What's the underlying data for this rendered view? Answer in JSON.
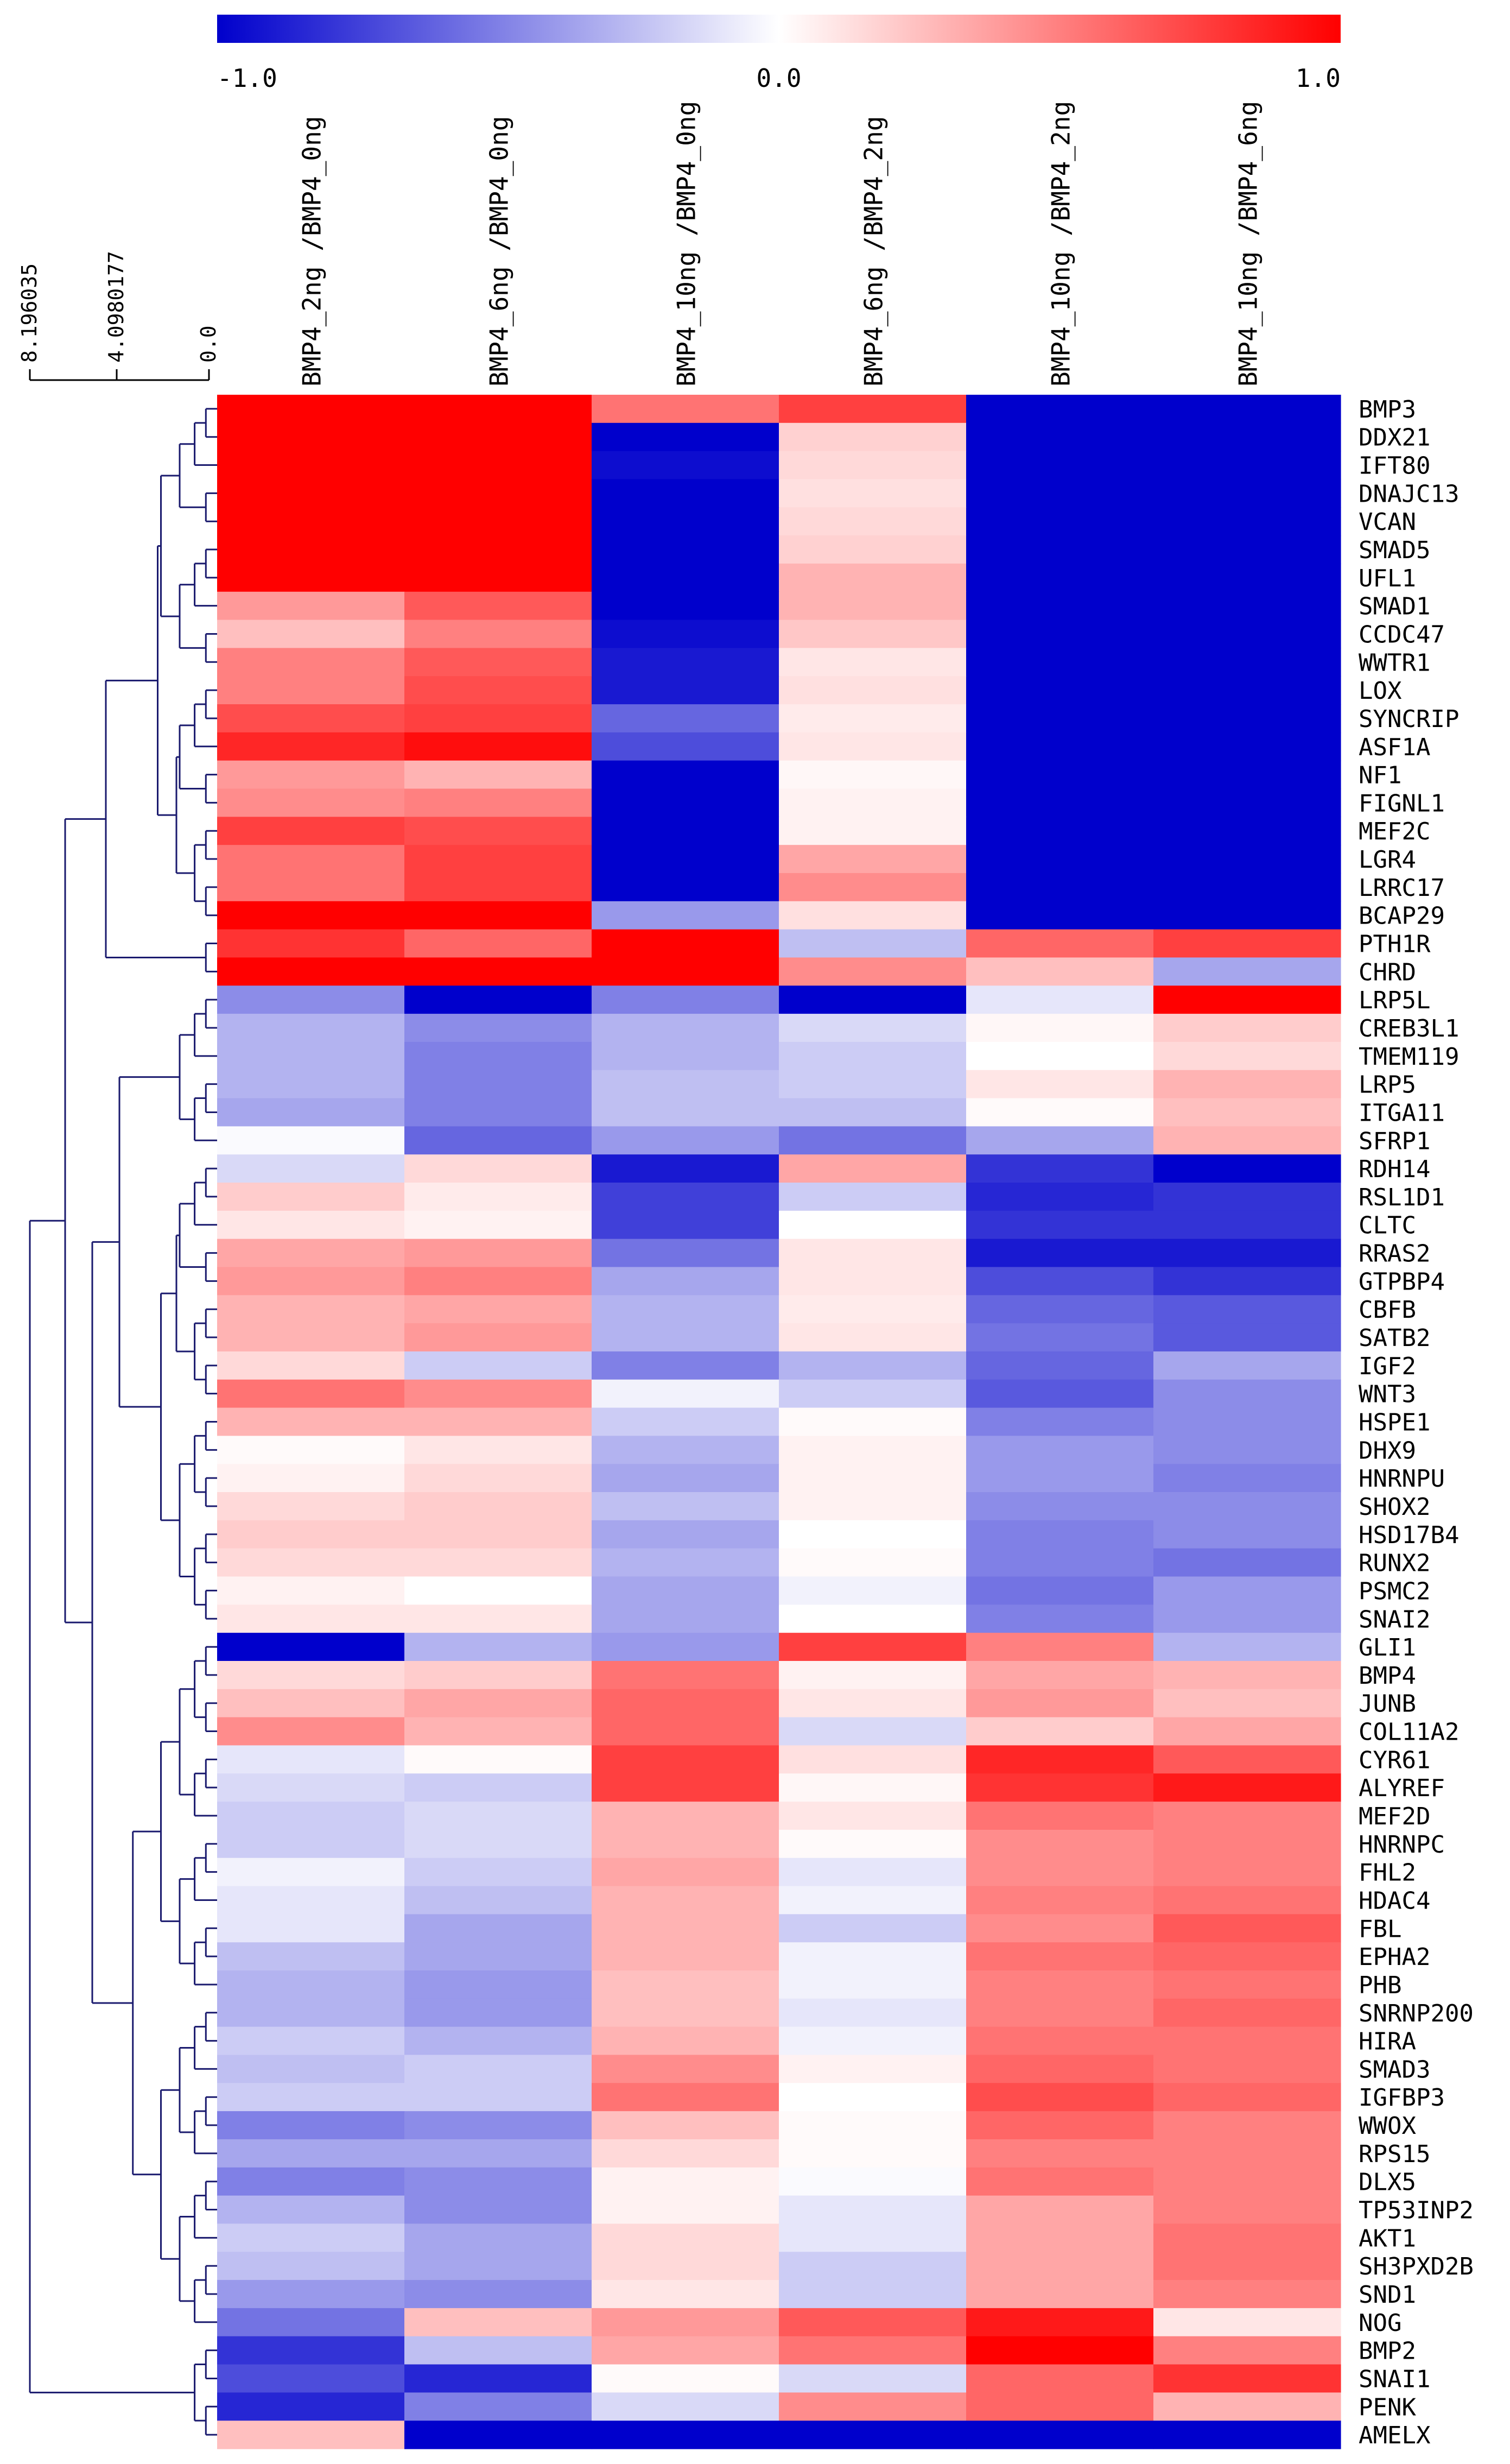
{
  "chart_data": {
    "type": "heatmap",
    "title": "",
    "colorbar": {
      "min": -1.0,
      "max": 1.0,
      "tick_labels": [
        "-1.0",
        "0.0",
        "1.0"
      ],
      "low_color": "#0000cc",
      "mid_color": "#ffffff",
      "high_color": "#ff0000"
    },
    "dendrogram_axis": {
      "tick_labels": [
        "8.196035",
        "4.0980177",
        "0.0"
      ]
    },
    "columns": [
      "BMP4_2ng /BMP4_0ng",
      "BMP4_6ng /BMP4_0ng",
      "BMP4_10ng /BMP4_0ng",
      "BMP4_6ng /BMP4_2ng",
      "BMP4_10ng /BMP4_2ng",
      "BMP4_10ng /BMP4_6ng"
    ],
    "label_rows": [
      "BMP3",
      "DDX21",
      "IFT80",
      "DNAJC13",
      "VCAN",
      "SMAD5",
      "UFL1",
      "SMAD1",
      "CCDC47",
      "WWTR1",
      "LOX",
      "SYNCRIP",
      "ASF1A",
      "NF1",
      "FIGNL1",
      "MEF2C",
      "LGR4",
      "LRRC17",
      "BCAP29",
      "PTH1R",
      "CHRD",
      "LRP5L",
      "CREB3L1",
      "TMEM119",
      "LRP5",
      "ITGA11",
      "SFRP1",
      "RDH14",
      "RSL1D1",
      "CLTC",
      "RRAS2",
      "GTPBP4",
      "CBFB",
      "SATB2",
      "IGF2",
      "WNT3",
      "HSPE1",
      "DHX9",
      "HNRNPU",
      "SHOX2",
      "HSD17B4",
      "RUNX2",
      "PSMC2",
      "SNAI2",
      "GLI1",
      "BMP4",
      "JUNB",
      "COL11A2",
      "CYR61",
      "ALYREF",
      "MEF2D",
      "HNRNPC",
      "FHL2",
      "HDAC4",
      "FBL",
      "EPHA2",
      "PHB",
      "SNRNP200",
      "HIRA",
      "SMAD3",
      "IGFBP3",
      "WWOX",
      "RPS15",
      "DLX5",
      "TP53INP2",
      "AKT1",
      "SH3PXD2B",
      "SND1",
      "NOG",
      "BMP2",
      "SNAI1",
      "PENK",
      "AMELX"
    ],
    "values": [
      [
        1.0,
        1.0,
        0.55,
        0.75,
        -1.0,
        -1.0
      ],
      [
        1.0,
        1.0,
        -1.0,
        0.18,
        -1.0,
        -1.0
      ],
      [
        1.0,
        1.0,
        -0.95,
        0.15,
        -1.0,
        -1.0
      ],
      [
        1.0,
        1.0,
        -1.0,
        0.12,
        -1.0,
        -1.0
      ],
      [
        1.0,
        1.0,
        -1.0,
        0.15,
        -1.0,
        -1.0
      ],
      [
        1.0,
        1.0,
        -1.0,
        0.18,
        -1.0,
        -1.0
      ],
      [
        1.0,
        1.0,
        -1.0,
        0.3,
        -1.0,
        -1.0
      ],
      [
        0.4,
        0.65,
        -1.0,
        0.3,
        -1.0,
        -1.0
      ],
      [
        0.25,
        0.5,
        -0.95,
        0.22,
        -1.0,
        -1.0
      ],
      [
        0.5,
        0.65,
        -0.9,
        0.1,
        -1.0,
        -1.0
      ],
      [
        0.5,
        0.7,
        -0.9,
        0.12,
        -1.0,
        -1.0
      ],
      [
        0.7,
        0.75,
        -0.6,
        0.08,
        -1.0,
        -1.0
      ],
      [
        0.85,
        0.95,
        -0.7,
        0.1,
        -1.0,
        -1.0
      ],
      [
        0.4,
        0.3,
        -1.0,
        0.03,
        -1.0,
        -1.0
      ],
      [
        0.45,
        0.5,
        -1.0,
        0.05,
        -1.0,
        -1.0
      ],
      [
        0.75,
        0.7,
        -1.0,
        0.05,
        -1.0,
        -1.0
      ],
      [
        0.55,
        0.75,
        -1.0,
        0.35,
        -1.0,
        -1.0
      ],
      [
        0.55,
        0.75,
        -1.0,
        0.45,
        -1.0,
        -1.0
      ],
      [
        1.0,
        1.0,
        -0.4,
        0.12,
        -1.0,
        -1.0
      ],
      [
        0.8,
        0.6,
        1.0,
        -0.25,
        0.6,
        0.75
      ],
      [
        1.0,
        1.0,
        1.0,
        0.45,
        0.25,
        -0.35
      ],
      [
        -0.45,
        -1.0,
        -0.5,
        -1.0,
        -0.1,
        1.0
      ],
      [
        -0.3,
        -0.45,
        -0.3,
        -0.15,
        0.03,
        0.2
      ],
      [
        -0.3,
        -0.5,
        -0.3,
        -0.2,
        0.0,
        0.15
      ],
      [
        -0.3,
        -0.5,
        -0.25,
        -0.2,
        0.1,
        0.3
      ],
      [
        -0.35,
        -0.5,
        -0.25,
        -0.25,
        0.02,
        0.25
      ],
      [
        -0.02,
        -0.6,
        -0.4,
        -0.55,
        -0.35,
        0.3
      ],
      [
        -0.15,
        0.15,
        -0.9,
        0.35,
        -0.8,
        -1.0
      ],
      [
        0.2,
        0.08,
        -0.75,
        -0.2,
        -0.85,
        -0.8
      ],
      [
        0.1,
        0.05,
        -0.75,
        0.0,
        -0.8,
        -0.8
      ],
      [
        0.35,
        0.4,
        -0.55,
        0.1,
        -0.9,
        -0.9
      ],
      [
        0.4,
        0.5,
        -0.35,
        0.1,
        -0.7,
        -0.8
      ],
      [
        0.3,
        0.35,
        -0.3,
        0.08,
        -0.6,
        -0.65
      ],
      [
        0.3,
        0.4,
        -0.3,
        0.1,
        -0.55,
        -0.65
      ],
      [
        0.15,
        -0.2,
        -0.5,
        -0.3,
        -0.6,
        -0.35
      ],
      [
        0.55,
        0.45,
        -0.05,
        -0.2,
        -0.65,
        -0.45
      ],
      [
        0.3,
        0.3,
        -0.2,
        0.02,
        -0.5,
        -0.45
      ],
      [
        0.02,
        0.1,
        -0.3,
        0.05,
        -0.4,
        -0.45
      ],
      [
        0.05,
        0.15,
        -0.35,
        0.05,
        -0.4,
        -0.5
      ],
      [
        0.15,
        0.2,
        -0.25,
        0.05,
        -0.45,
        -0.45
      ],
      [
        0.2,
        0.2,
        -0.35,
        0.0,
        -0.5,
        -0.45
      ],
      [
        0.15,
        0.15,
        -0.3,
        0.02,
        -0.5,
        -0.55
      ],
      [
        0.05,
        0.0,
        -0.35,
        -0.05,
        -0.55,
        -0.4
      ],
      [
        0.1,
        0.1,
        -0.35,
        0.0,
        -0.5,
        -0.4
      ],
      [
        -1.0,
        -0.3,
        -0.4,
        0.75,
        0.5,
        -0.3
      ],
      [
        0.15,
        0.2,
        0.55,
        0.05,
        0.35,
        0.3
      ],
      [
        0.25,
        0.35,
        0.6,
        0.1,
        0.4,
        0.25
      ],
      [
        0.45,
        0.3,
        0.6,
        -0.15,
        0.2,
        0.35
      ],
      [
        -0.1,
        0.02,
        0.75,
        0.12,
        0.85,
        0.65
      ],
      [
        -0.15,
        -0.2,
        0.75,
        0.03,
        0.8,
        0.9
      ],
      [
        -0.2,
        -0.15,
        0.3,
        0.1,
        0.55,
        0.5
      ],
      [
        -0.2,
        -0.15,
        0.3,
        0.02,
        0.45,
        0.5
      ],
      [
        -0.05,
        -0.2,
        0.35,
        -0.1,
        0.45,
        0.5
      ],
      [
        -0.1,
        -0.25,
        0.3,
        -0.05,
        0.5,
        0.55
      ],
      [
        -0.1,
        -0.35,
        0.3,
        -0.2,
        0.45,
        0.65
      ],
      [
        -0.25,
        -0.35,
        0.3,
        -0.05,
        0.55,
        0.6
      ],
      [
        -0.3,
        -0.4,
        0.25,
        -0.05,
        0.5,
        0.55
      ],
      [
        -0.3,
        -0.4,
        0.25,
        -0.1,
        0.5,
        0.6
      ],
      [
        -0.2,
        -0.3,
        0.3,
        -0.05,
        0.55,
        0.55
      ],
      [
        -0.25,
        -0.2,
        0.45,
        0.05,
        0.6,
        0.55
      ],
      [
        -0.2,
        -0.2,
        0.55,
        0.0,
        0.7,
        0.6
      ],
      [
        -0.5,
        -0.45,
        0.25,
        0.02,
        0.6,
        0.5
      ],
      [
        -0.35,
        -0.35,
        0.15,
        0.02,
        0.5,
        0.5
      ],
      [
        -0.5,
        -0.45,
        0.05,
        -0.02,
        0.55,
        0.5
      ],
      [
        -0.3,
        -0.45,
        0.05,
        -0.1,
        0.35,
        0.5
      ],
      [
        -0.2,
        -0.35,
        0.15,
        -0.1,
        0.35,
        0.55
      ],
      [
        -0.25,
        -0.35,
        0.15,
        -0.2,
        0.35,
        0.55
      ],
      [
        -0.4,
        -0.45,
        0.1,
        -0.2,
        0.35,
        0.5
      ],
      [
        -0.55,
        0.25,
        0.4,
        0.65,
        0.9,
        0.1
      ],
      [
        -0.8,
        -0.25,
        0.35,
        0.55,
        1.0,
        0.5
      ],
      [
        -0.7,
        -0.85,
        0.02,
        -0.15,
        0.6,
        0.8
      ],
      [
        -0.85,
        -0.5,
        -0.15,
        0.45,
        0.6,
        0.3
      ],
      [
        0.25,
        -1.0,
        -1.0,
        -1.0,
        -1.0,
        -1.0
      ]
    ]
  }
}
